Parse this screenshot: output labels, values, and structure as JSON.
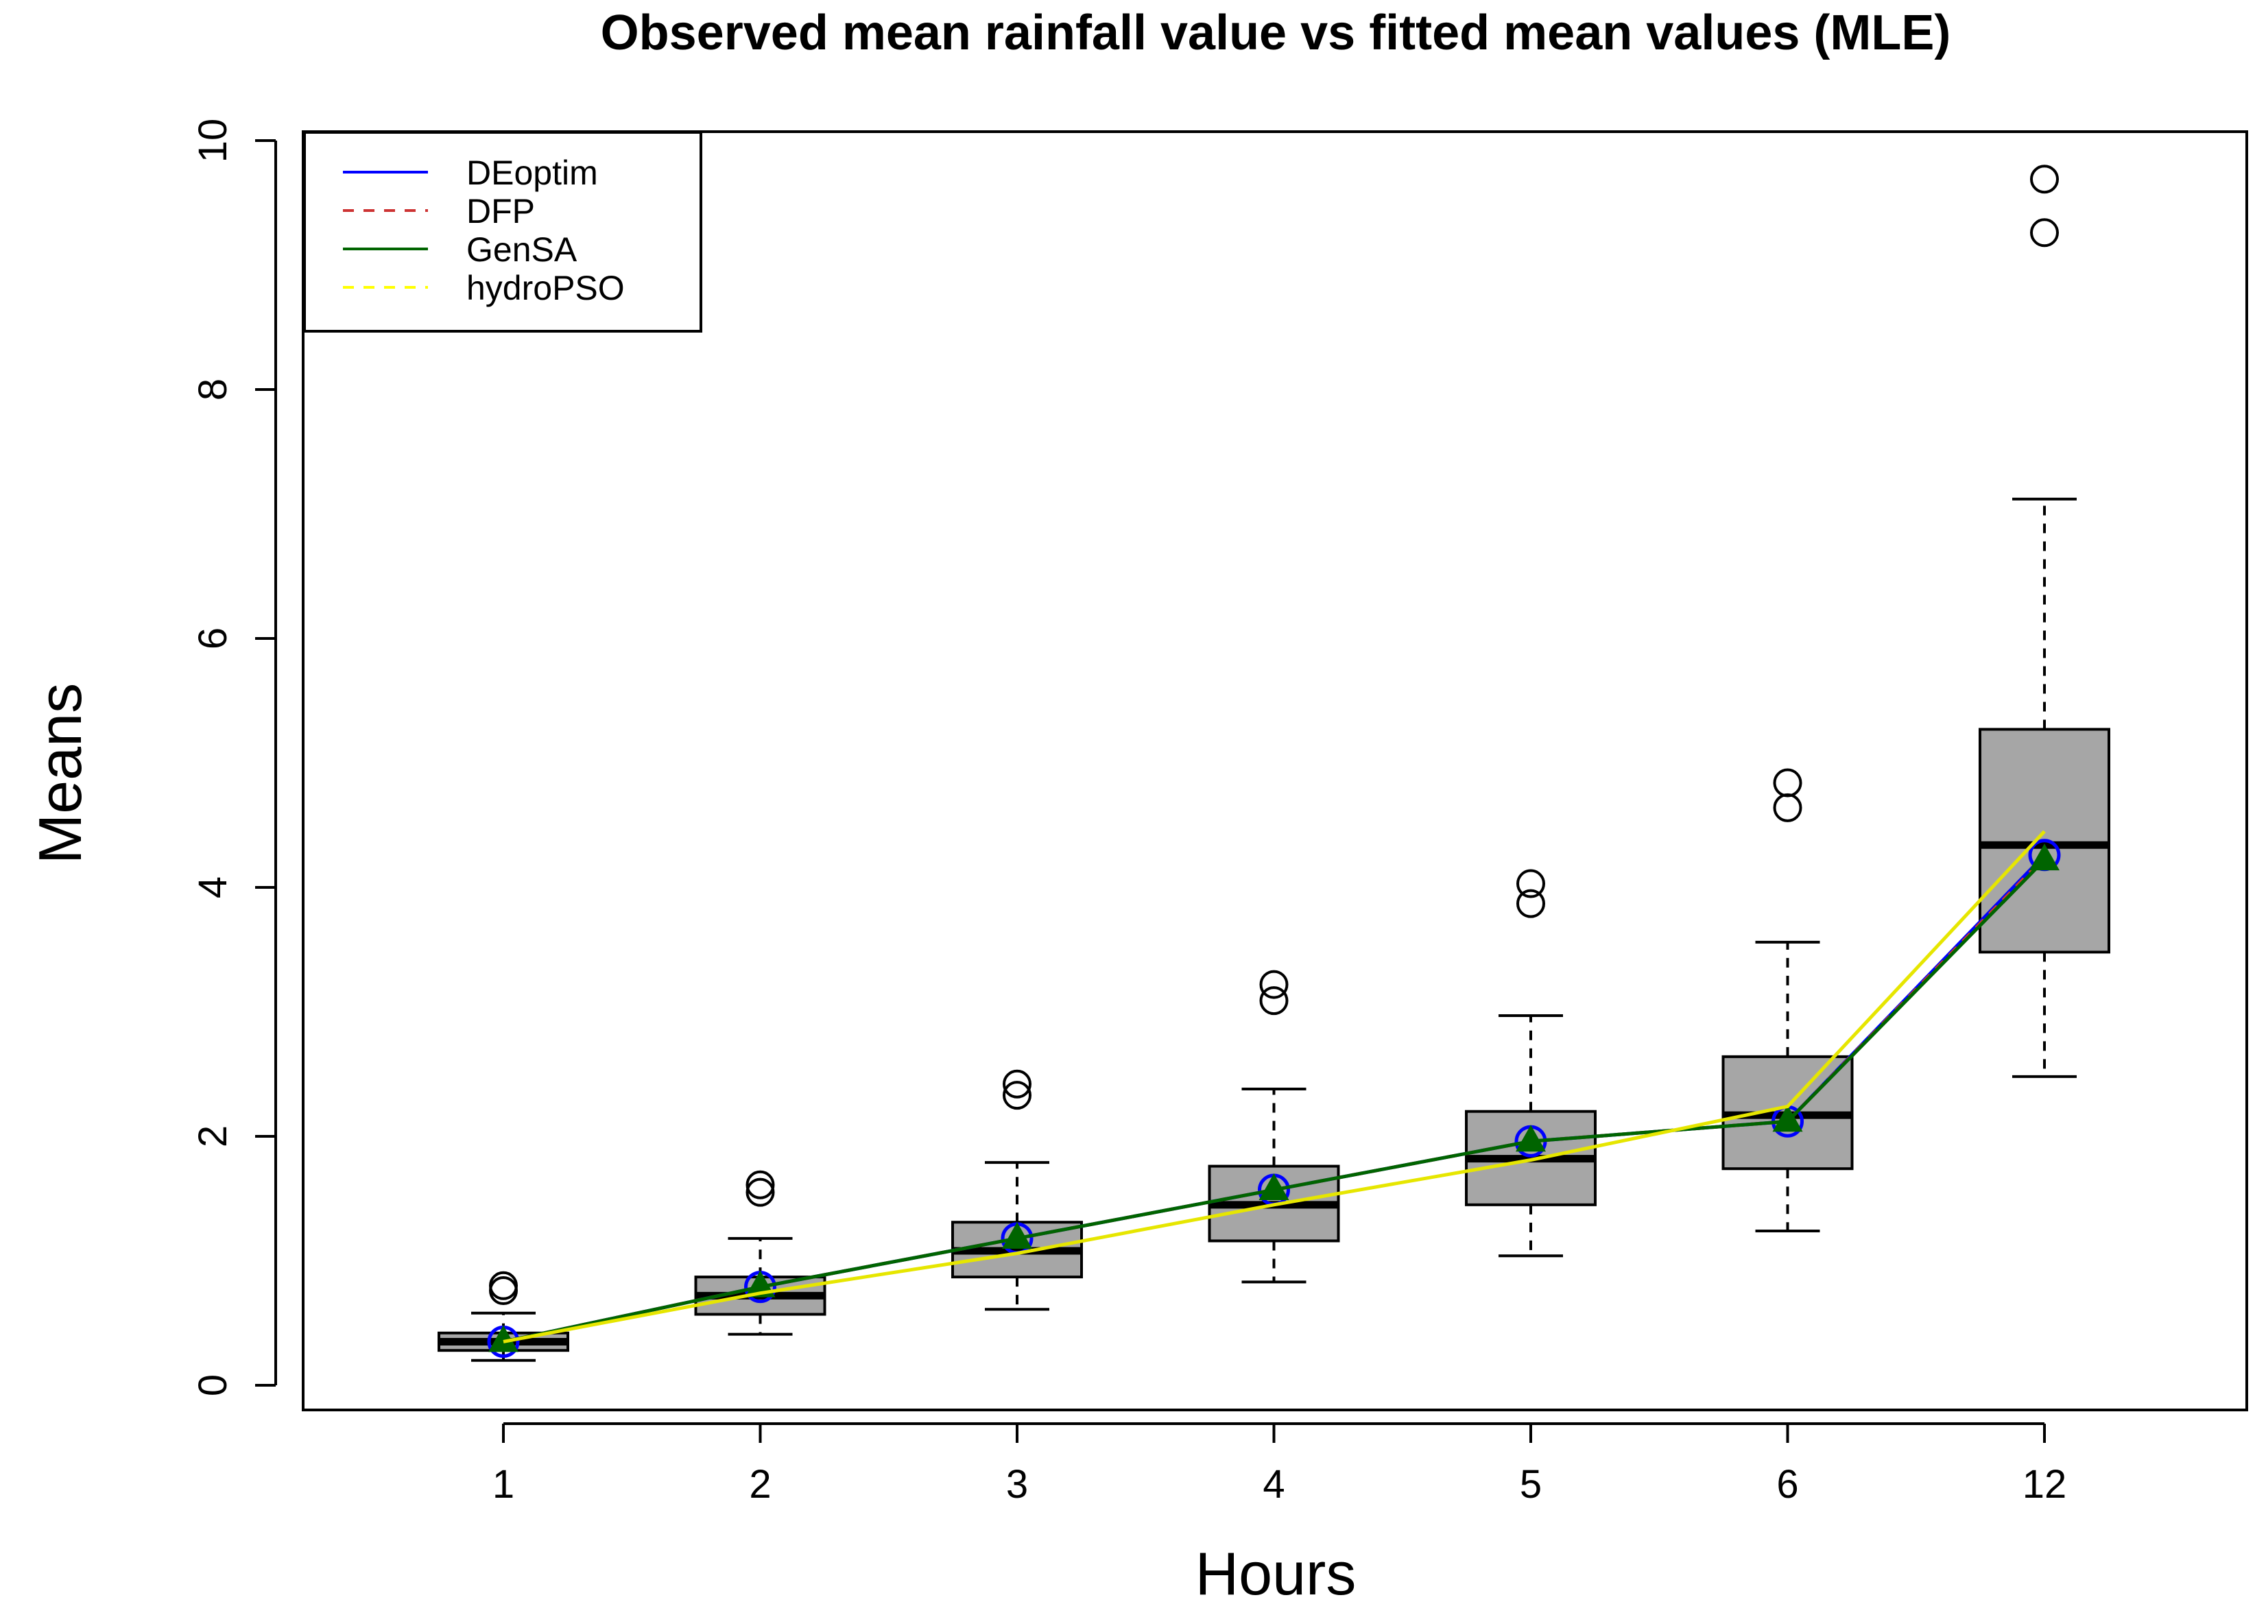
{
  "chart_data": {
    "type": "box",
    "title": "Observed mean rainfall value vs fitted mean values (MLE)",
    "xlabel": "Hours",
    "ylabel": "Means",
    "ylim": [
      0,
      10
    ],
    "yticks": [
      0,
      2,
      4,
      6,
      8,
      10
    ],
    "categories": [
      "1",
      "2",
      "3",
      "4",
      "5",
      "6",
      "12"
    ],
    "boxes": [
      {
        "category": "1",
        "whisker_low": 0.2,
        "q1": 0.28,
        "median": 0.35,
        "q3": 0.42,
        "whisker_high": 0.58,
        "outliers": [
          0.76,
          0.8
        ]
      },
      {
        "category": "2",
        "whisker_low": 0.41,
        "q1": 0.57,
        "median": 0.72,
        "q3": 0.87,
        "whisker_high": 1.18,
        "outliers": [
          1.55,
          1.61
        ]
      },
      {
        "category": "3",
        "whisker_low": 0.61,
        "q1": 0.87,
        "median": 1.08,
        "q3": 1.31,
        "whisker_high": 1.79,
        "outliers": [
          2.33,
          2.42
        ]
      },
      {
        "category": "4",
        "whisker_low": 0.83,
        "q1": 1.16,
        "median": 1.45,
        "q3": 1.76,
        "whisker_high": 2.38,
        "outliers": [
          3.09,
          3.22
        ]
      },
      {
        "category": "5",
        "whisker_low": 1.04,
        "q1": 1.45,
        "median": 1.82,
        "q3": 2.2,
        "whisker_high": 2.97,
        "outliers": [
          3.87,
          4.03
        ]
      },
      {
        "category": "6",
        "whisker_low": 1.24,
        "q1": 1.74,
        "median": 2.17,
        "q3": 2.64,
        "whisker_high": 3.56,
        "outliers": [
          4.64,
          4.84
        ]
      },
      {
        "category": "12",
        "whisker_low": 2.48,
        "q1": 3.48,
        "median": 4.34,
        "q3": 5.27,
        "whisker_high": 7.12,
        "outliers": [
          9.26,
          9.69
        ]
      }
    ],
    "series": [
      {
        "name": "DEoptim",
        "color": "#0000ff",
        "dash": "solid",
        "marker": "circle",
        "values": [
          0.35,
          0.79,
          1.18,
          1.57,
          1.96,
          2.12,
          4.26
        ]
      },
      {
        "name": "DFP",
        "color": "#cd3333",
        "dash": "dashed",
        "marker": "none",
        "values": [
          0.35,
          0.79,
          1.18,
          1.57,
          1.96,
          2.12,
          4.24
        ]
      },
      {
        "name": "GenSA",
        "color": "#006400",
        "dash": "solid",
        "marker": "triangle",
        "values": [
          0.35,
          0.79,
          1.18,
          1.57,
          1.96,
          2.12,
          4.22
        ]
      },
      {
        "name": "hydroPSO",
        "color": "#ffff00",
        "dash": "dashed",
        "marker": "none",
        "line_color": "#e6e600",
        "values": [
          0.35,
          0.74,
          1.06,
          1.45,
          1.81,
          2.24,
          4.45
        ]
      }
    ],
    "legend_position": "top-left",
    "box_fill": "#a6a6a6"
  }
}
